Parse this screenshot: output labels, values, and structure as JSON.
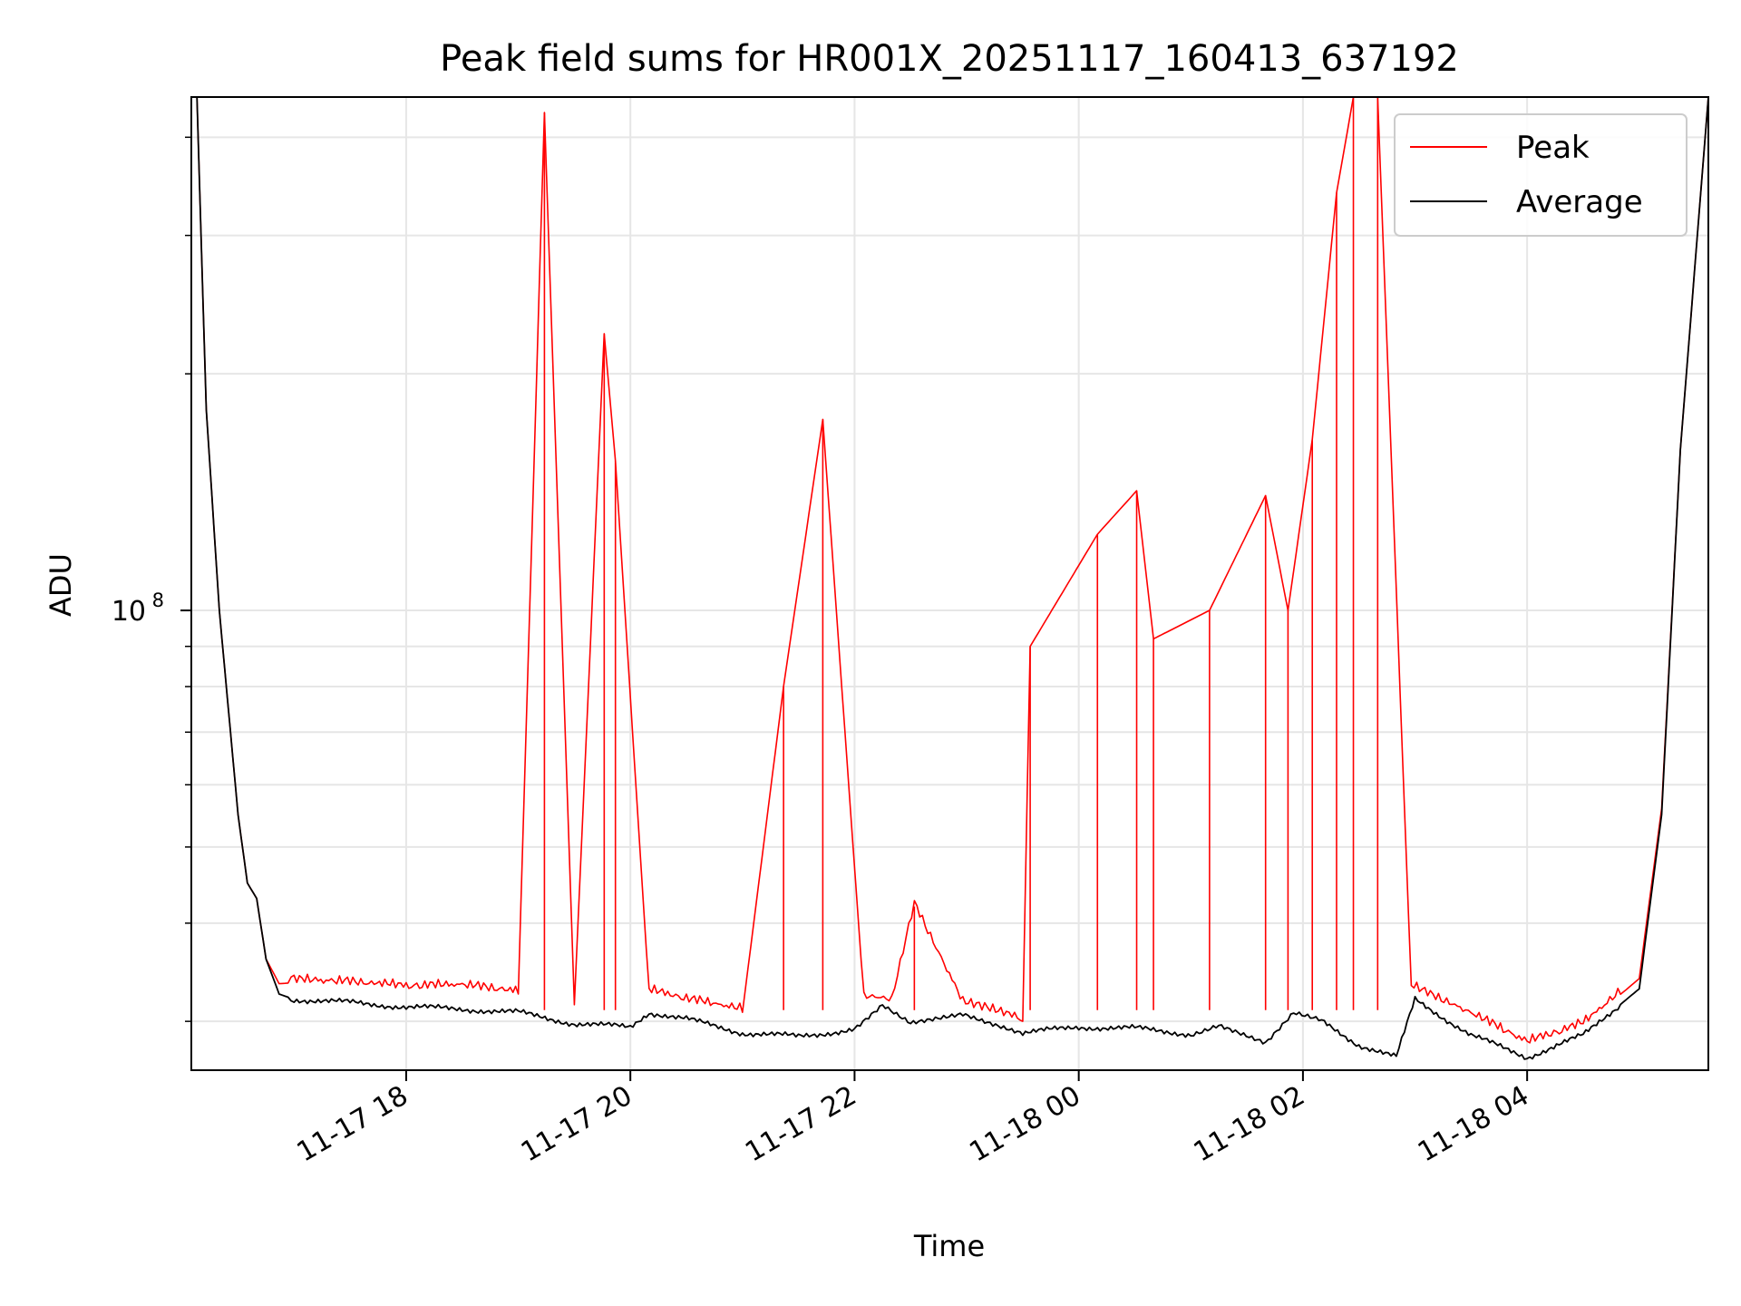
{
  "chart_data": {
    "type": "line",
    "title": "Peak field sums for HR001X_20251117_160413_637192",
    "xlabel": "Time",
    "ylabel": "ADU",
    "y_scale": "log",
    "ylim": [
      26000000,
      450000000
    ],
    "y_major_tick": {
      "value": 100000000,
      "label": "10",
      "exp": "8"
    },
    "y_minor_ticks": [
      30000000,
      40000000,
      50000000,
      60000000,
      70000000,
      80000000,
      90000000,
      200000000,
      300000000,
      400000000
    ],
    "xlim": [
      "2025-11-17 16:05",
      "2025-11-18 05:37"
    ],
    "x_ticks": [
      {
        "value": "2025-11-17 18:00",
        "label": "11-17 18"
      },
      {
        "value": "2025-11-17 20:00",
        "label": "11-17 20"
      },
      {
        "value": "2025-11-17 22:00",
        "label": "11-17 22"
      },
      {
        "value": "2025-11-18 00:00",
        "label": "11-18 00"
      },
      {
        "value": "2025-11-18 02:00",
        "label": "11-18 02"
      },
      {
        "value": "2025-11-18 04:00",
        "label": "11-18 04"
      }
    ],
    "grid": true,
    "legend_position": "top-right",
    "series": [
      {
        "name": "Peak",
        "color": "#ff0000",
        "points": [
          [
            "2025-11-17 16:08",
            450000000
          ],
          [
            "2025-11-17 16:13",
            180000000
          ],
          [
            "2025-11-17 16:20",
            100000000
          ],
          [
            "2025-11-17 16:30",
            55000000
          ],
          [
            "2025-11-17 16:35",
            45000000
          ],
          [
            "2025-11-17 16:40",
            43000000
          ],
          [
            "2025-11-17 16:45",
            36000000
          ],
          [
            "2025-11-17 16:52",
            33500000
          ],
          [
            "2025-11-17 17:00",
            33600000
          ],
          [
            "2025-11-17 17:30",
            33400000
          ],
          [
            "2025-11-17 18:00",
            33000000
          ],
          [
            "2025-11-17 18:30",
            33100000
          ],
          [
            "2025-11-17 19:00",
            32500000
          ],
          [
            "2025-11-17 19:14",
            430000000
          ],
          [
            "2025-11-17 19:30",
            31500000
          ],
          [
            "2025-11-17 19:46",
            225000000
          ],
          [
            "2025-11-17 19:52",
            155000000
          ],
          [
            "2025-11-17 20:10",
            32600000
          ],
          [
            "2025-11-17 20:30",
            31800000
          ],
          [
            "2025-11-17 21:00",
            30800000
          ],
          [
            "2025-11-17 21:22",
            80000000
          ],
          [
            "2025-11-17 21:43",
            175000000
          ],
          [
            "2025-11-17 22:05",
            32000000
          ],
          [
            "2025-11-17 22:20",
            31800000
          ],
          [
            "2025-11-17 22:32",
            42000000
          ],
          [
            "2025-11-17 22:58",
            31500000
          ],
          [
            "2025-11-17 23:30",
            30000000
          ],
          [
            "2025-11-17 23:34",
            90000000
          ],
          [
            "2025-11-18 00:10",
            125000000
          ],
          [
            "2025-11-18 00:31",
            142000000
          ],
          [
            "2025-11-18 00:40",
            92000000
          ],
          [
            "2025-11-18 01:10",
            100000000
          ],
          [
            "2025-11-18 01:40",
            140000000
          ],
          [
            "2025-11-18 01:52",
            100000000
          ],
          [
            "2025-11-18 02:05",
            165000000
          ],
          [
            "2025-11-18 02:18",
            340000000
          ],
          [
            "2025-11-18 02:27",
            450000000
          ],
          [
            "2025-11-18 02:40",
            450000000
          ],
          [
            "2025-11-18 02:58",
            33000000
          ],
          [
            "2025-11-18 03:30",
            30500000
          ],
          [
            "2025-11-18 04:00",
            28000000
          ],
          [
            "2025-11-18 04:30",
            29600000
          ],
          [
            "2025-11-18 05:00",
            34000000
          ],
          [
            "2025-11-18 05:12",
            56000000
          ],
          [
            "2025-11-18 05:22",
            160000000
          ],
          [
            "2025-11-18 05:37",
            450000000
          ]
        ]
      },
      {
        "name": "Average",
        "color": "#000000",
        "points": [
          [
            "2025-11-17 16:08",
            450000000
          ],
          [
            "2025-11-17 16:13",
            180000000
          ],
          [
            "2025-11-17 16:20",
            100000000
          ],
          [
            "2025-11-17 16:30",
            55000000
          ],
          [
            "2025-11-17 16:35",
            45000000
          ],
          [
            "2025-11-17 16:40",
            43000000
          ],
          [
            "2025-11-17 16:45",
            36000000
          ],
          [
            "2025-11-17 16:52",
            32500000
          ],
          [
            "2025-11-17 17:00",
            32000000
          ],
          [
            "2025-11-17 17:30",
            31700000
          ],
          [
            "2025-11-17 18:00",
            31300000
          ],
          [
            "2025-11-17 18:30",
            31100000
          ],
          [
            "2025-11-17 19:00",
            30800000
          ],
          [
            "2025-11-17 19:30",
            29800000
          ],
          [
            "2025-11-17 20:00",
            29500000
          ],
          [
            "2025-11-17 20:10",
            30800000
          ],
          [
            "2025-11-17 20:30",
            30200000
          ],
          [
            "2025-11-17 21:00",
            29000000
          ],
          [
            "2025-11-17 21:30",
            28700000
          ],
          [
            "2025-11-17 22:00",
            29300000
          ],
          [
            "2025-11-17 22:15",
            31600000
          ],
          [
            "2025-11-17 22:30",
            30000000
          ],
          [
            "2025-11-17 22:58",
            30800000
          ],
          [
            "2025-11-17 23:30",
            29000000
          ],
          [
            "2025-11-18 00:00",
            29500000
          ],
          [
            "2025-11-18 00:30",
            29400000
          ],
          [
            "2025-11-18 01:00",
            28900000
          ],
          [
            "2025-11-18 01:15",
            29800000
          ],
          [
            "2025-11-18 01:40",
            28300000
          ],
          [
            "2025-11-18 01:55",
            30800000
          ],
          [
            "2025-11-18 02:10",
            30000000
          ],
          [
            "2025-11-18 02:30",
            28000000
          ],
          [
            "2025-11-18 02:50",
            27000000
          ],
          [
            "2025-11-18 03:00",
            32000000
          ],
          [
            "2025-11-18 03:30",
            28800000
          ],
          [
            "2025-11-18 04:00",
            27000000
          ],
          [
            "2025-11-18 04:30",
            28800000
          ],
          [
            "2025-11-18 05:00",
            33000000
          ],
          [
            "2025-11-18 05:12",
            55000000
          ],
          [
            "2025-11-18 05:22",
            160000000
          ],
          [
            "2025-11-18 05:37",
            450000000
          ]
        ]
      }
    ]
  }
}
